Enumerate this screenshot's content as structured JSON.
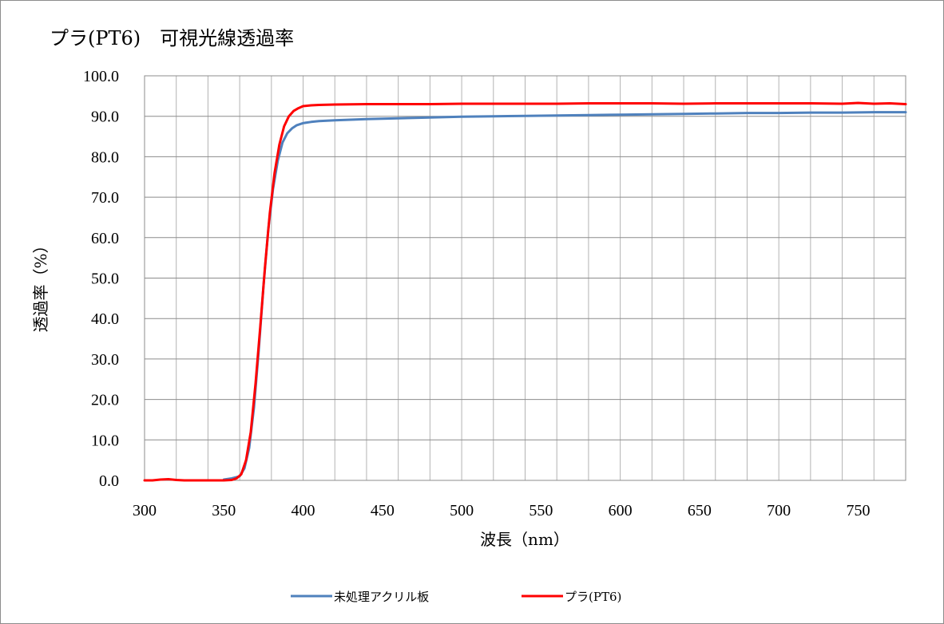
{
  "chart_data": {
    "type": "line",
    "title": "プラ(PT6)　可視光線透過率",
    "xlabel": "波長（nm）",
    "ylabel": "透過率（%）",
    "xlim": [
      300,
      780
    ],
    "ylim": [
      0,
      100
    ],
    "x_ticks": [
      "300",
      "350",
      "400",
      "450",
      "500",
      "550",
      "600",
      "650",
      "700",
      "750"
    ],
    "y_ticks": [
      "0.0",
      "10.0",
      "20.0",
      "30.0",
      "40.0",
      "50.0",
      "60.0",
      "70.0",
      "80.0",
      "90.0",
      "100.0"
    ],
    "grid": true,
    "legend_position": "bottom",
    "series": [
      {
        "name": "未処理アクリル板",
        "color": "#4F81BD",
        "x": [
          350,
          355,
          360,
          363,
          366,
          369,
          372,
          375,
          378,
          381,
          384,
          387,
          390,
          393,
          396,
          400,
          405,
          410,
          420,
          440,
          460,
          480,
          500,
          520,
          540,
          560,
          580,
          600,
          620,
          640,
          660,
          680,
          700,
          720,
          740,
          760,
          780
        ],
        "values": [
          0.2,
          0.5,
          1.0,
          3.0,
          8.0,
          18.0,
          32.0,
          48.0,
          62.0,
          72.0,
          79.0,
          83.5,
          85.8,
          87.0,
          87.8,
          88.3,
          88.6,
          88.8,
          89.0,
          89.3,
          89.5,
          89.7,
          89.9,
          90.0,
          90.1,
          90.2,
          90.3,
          90.4,
          90.5,
          90.6,
          90.7,
          90.8,
          90.8,
          90.9,
          90.9,
          91.0,
          91.0
        ]
      },
      {
        "name": "プラ(PT6)",
        "color": "#FF0000",
        "x": [
          300,
          305,
          310,
          315,
          320,
          325,
          330,
          340,
          350,
          355,
          358,
          361,
          364,
          367,
          370,
          373,
          376,
          379,
          382,
          385,
          388,
          391,
          394,
          397,
          400,
          405,
          410,
          420,
          440,
          460,
          480,
          500,
          520,
          540,
          560,
          580,
          600,
          620,
          640,
          660,
          680,
          700,
          720,
          740,
          750,
          760,
          770,
          780
        ],
        "values": [
          0.0,
          0.0,
          0.2,
          0.3,
          0.1,
          0.0,
          0.0,
          0.0,
          0.0,
          0.1,
          0.5,
          1.5,
          5.0,
          12.0,
          24.0,
          38.0,
          53.0,
          66.0,
          76.0,
          83.0,
          87.5,
          90.0,
          91.3,
          92.0,
          92.5,
          92.7,
          92.8,
          92.9,
          93.0,
          93.0,
          93.0,
          93.1,
          93.1,
          93.1,
          93.1,
          93.2,
          93.2,
          93.2,
          93.1,
          93.2,
          93.2,
          93.2,
          93.2,
          93.1,
          93.3,
          93.1,
          93.2,
          93.0
        ]
      }
    ]
  }
}
